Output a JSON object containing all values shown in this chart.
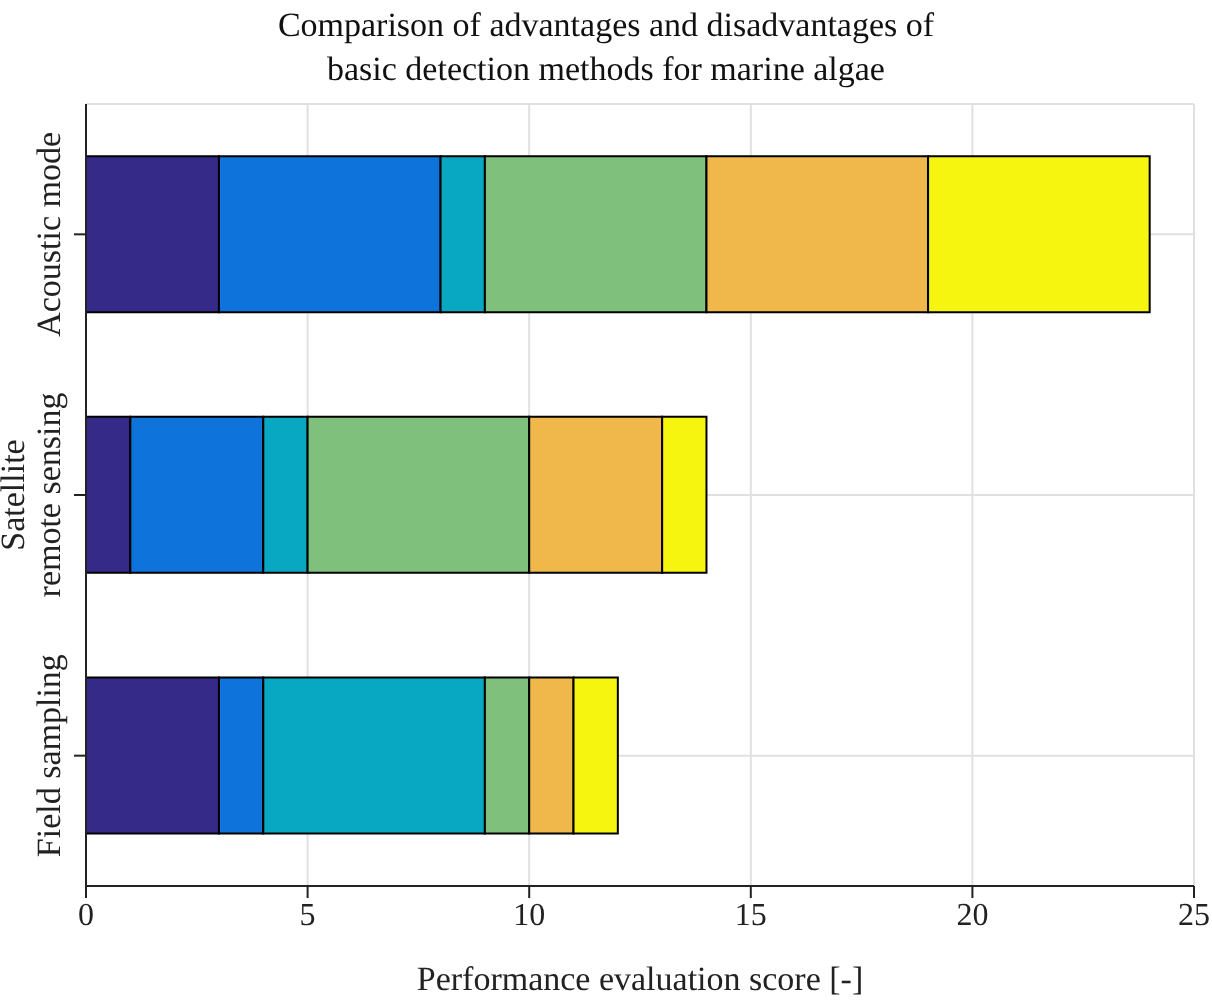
{
  "chart_data": {
    "type": "bar",
    "orientation": "horizontal",
    "stacked": true,
    "title": "Comparison of advantages and disadvantages of\nbasic detection methods for marine algae",
    "xlabel": "Performance evaluation score [-]",
    "categories": [
      "Acoustic mode",
      "Satellite\nremote sensing",
      "Field sampling"
    ],
    "series": [
      {
        "color": "#352a87",
        "values": [
          3,
          1,
          3
        ]
      },
      {
        "color": "#0f73dc",
        "values": [
          5,
          3,
          1
        ]
      },
      {
        "color": "#08a8c2",
        "values": [
          1,
          1,
          5
        ]
      },
      {
        "color": "#7fc07c",
        "values": [
          5,
          5,
          1
        ]
      },
      {
        "color": "#f0b84a",
        "values": [
          5,
          3,
          1
        ]
      },
      {
        "color": "#f5f510",
        "values": [
          5,
          1,
          1
        ]
      }
    ],
    "xlim": [
      0,
      25
    ],
    "xticks": [
      0,
      5,
      10,
      15,
      20,
      25
    ],
    "grid": true
  }
}
